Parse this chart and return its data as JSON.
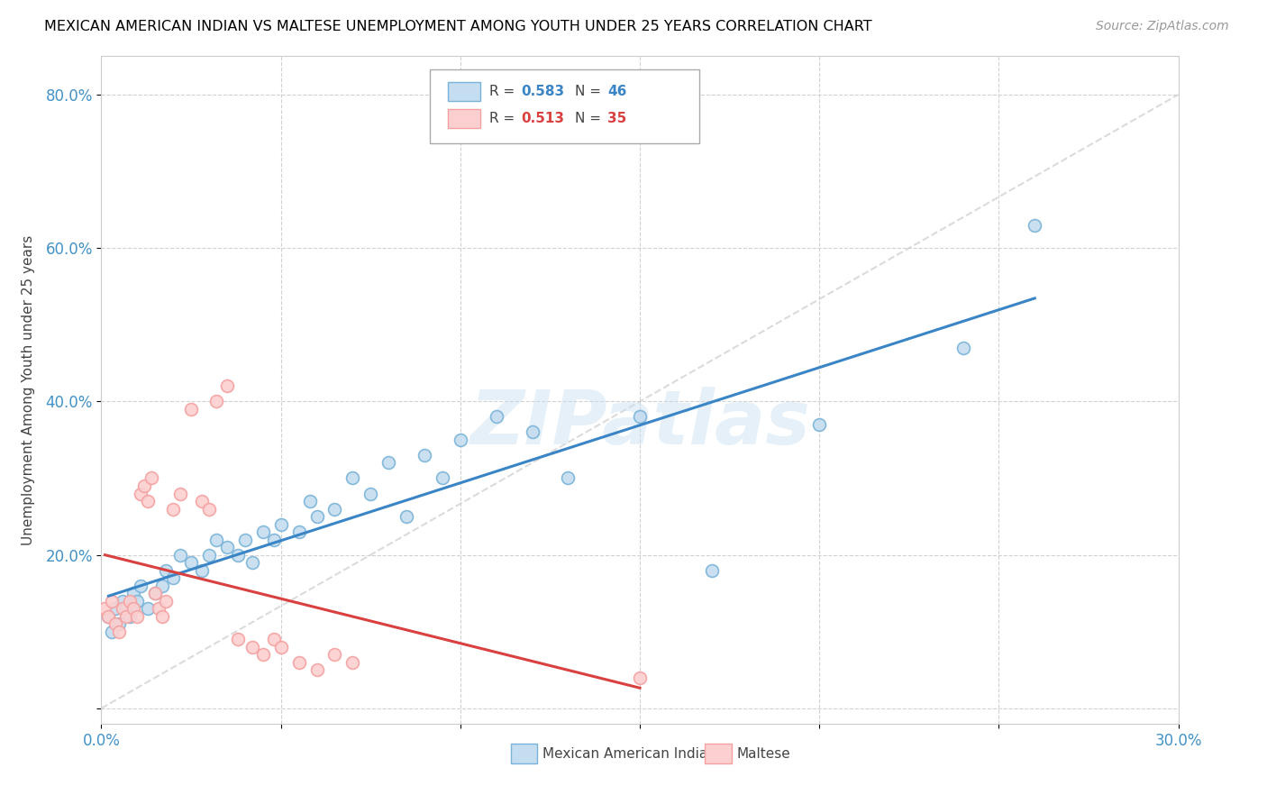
{
  "title": "MEXICAN AMERICAN INDIAN VS MALTESE UNEMPLOYMENT AMONG YOUTH UNDER 25 YEARS CORRELATION CHART",
  "source": "Source: ZipAtlas.com",
  "ylabel": "Unemployment Among Youth under 25 years",
  "xlim": [
    0.0,
    0.3
  ],
  "ylim": [
    -0.02,
    0.85
  ],
  "xticks": [
    0.0,
    0.05,
    0.1,
    0.15,
    0.2,
    0.25,
    0.3
  ],
  "xticklabels": [
    "0.0%",
    "",
    "",
    "",
    "",
    "",
    "30.0%"
  ],
  "yticks": [
    0.0,
    0.2,
    0.4,
    0.6,
    0.8
  ],
  "yticklabels": [
    "",
    "20.0%",
    "40.0%",
    "60.0%",
    "80.0%"
  ],
  "blue_color": "#7ab3d9",
  "pink_color": "#f4a0a0",
  "blue_fill": "#c5ddf0",
  "pink_fill": "#fcd0d0",
  "line_blue": "#3a85c6",
  "line_pink": "#d94040",
  "diag_color": "#cccccc",
  "R_blue": 0.583,
  "N_blue": 46,
  "R_pink": 0.513,
  "N_pink": 35,
  "legend_label_blue": "Mexican American Indians",
  "legend_label_pink": "Maltese",
  "watermark": "ZIPatlas",
  "blue_scatter_x": [
    0.002,
    0.003,
    0.004,
    0.005,
    0.006,
    0.007,
    0.008,
    0.009,
    0.01,
    0.011,
    0.013,
    0.015,
    0.017,
    0.018,
    0.02,
    0.022,
    0.025,
    0.028,
    0.03,
    0.032,
    0.035,
    0.038,
    0.04,
    0.042,
    0.045,
    0.048,
    0.05,
    0.055,
    0.058,
    0.06,
    0.065,
    0.07,
    0.075,
    0.08,
    0.085,
    0.09,
    0.095,
    0.1,
    0.11,
    0.12,
    0.13,
    0.15,
    0.17,
    0.2,
    0.24,
    0.26
  ],
  "blue_scatter_y": [
    0.12,
    0.1,
    0.13,
    0.11,
    0.14,
    0.13,
    0.12,
    0.15,
    0.14,
    0.16,
    0.13,
    0.15,
    0.16,
    0.18,
    0.17,
    0.2,
    0.19,
    0.18,
    0.2,
    0.22,
    0.21,
    0.2,
    0.22,
    0.19,
    0.23,
    0.22,
    0.24,
    0.23,
    0.27,
    0.25,
    0.26,
    0.3,
    0.28,
    0.32,
    0.25,
    0.33,
    0.3,
    0.35,
    0.38,
    0.36,
    0.3,
    0.38,
    0.18,
    0.37,
    0.47,
    0.63
  ],
  "pink_scatter_x": [
    0.001,
    0.002,
    0.003,
    0.004,
    0.005,
    0.006,
    0.007,
    0.008,
    0.009,
    0.01,
    0.011,
    0.012,
    0.013,
    0.014,
    0.015,
    0.016,
    0.017,
    0.018,
    0.02,
    0.022,
    0.025,
    0.028,
    0.03,
    0.032,
    0.035,
    0.038,
    0.042,
    0.045,
    0.048,
    0.05,
    0.055,
    0.06,
    0.065,
    0.07,
    0.15
  ],
  "pink_scatter_y": [
    0.13,
    0.12,
    0.14,
    0.11,
    0.1,
    0.13,
    0.12,
    0.14,
    0.13,
    0.12,
    0.28,
    0.29,
    0.27,
    0.3,
    0.15,
    0.13,
    0.12,
    0.14,
    0.26,
    0.28,
    0.39,
    0.27,
    0.26,
    0.4,
    0.42,
    0.09,
    0.08,
    0.07,
    0.09,
    0.08,
    0.06,
    0.05,
    0.07,
    0.06,
    0.04
  ]
}
